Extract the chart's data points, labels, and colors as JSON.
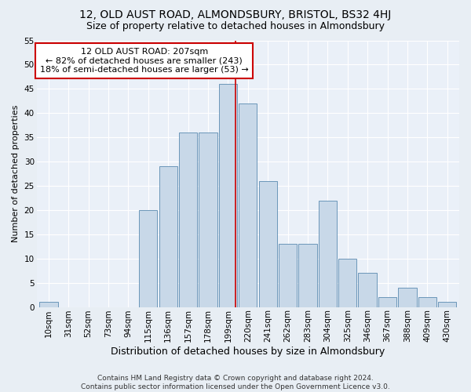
{
  "title": "12, OLD AUST ROAD, ALMONDSBURY, BRISTOL, BS32 4HJ",
  "subtitle": "Size of property relative to detached houses in Almondsbury",
  "xlabel": "Distribution of detached houses by size in Almondsbury",
  "ylabel": "Number of detached properties",
  "footnote": "Contains HM Land Registry data © Crown copyright and database right 2024.\nContains public sector information licensed under the Open Government Licence v3.0.",
  "categories": [
    "10sqm",
    "31sqm",
    "52sqm",
    "73sqm",
    "94sqm",
    "115sqm",
    "136sqm",
    "157sqm",
    "178sqm",
    "199sqm",
    "220sqm",
    "241sqm",
    "262sqm",
    "283sqm",
    "304sqm",
    "325sqm",
    "346sqm",
    "367sqm",
    "388sqm",
    "409sqm",
    "430sqm"
  ],
  "values": [
    1,
    0,
    0,
    0,
    0,
    20,
    29,
    36,
    36,
    46,
    42,
    26,
    13,
    13,
    22,
    10,
    7,
    2,
    4,
    2,
    1
  ],
  "bar_color": "#c8d8e8",
  "bar_edge_color": "#5a8ab0",
  "annotation_text": "12 OLD AUST ROAD: 207sqm\n← 82% of detached houses are smaller (243)\n18% of semi-detached houses are larger (53) →",
  "annotation_box_color": "#ffffff",
  "annotation_box_edge": "#cc0000",
  "vline_color": "#cc0000",
  "vline_x": 9.38,
  "title_fontsize": 10,
  "subtitle_fontsize": 9,
  "xlabel_fontsize": 9,
  "ylabel_fontsize": 8,
  "tick_fontsize": 7.5,
  "annotation_fontsize": 8,
  "footnote_fontsize": 6.5,
  "background_color": "#e8eef4",
  "plot_background_color": "#eaf0f8",
  "ylim": [
    0,
    55
  ],
  "yticks": [
    0,
    5,
    10,
    15,
    20,
    25,
    30,
    35,
    40,
    45,
    50,
    55
  ]
}
